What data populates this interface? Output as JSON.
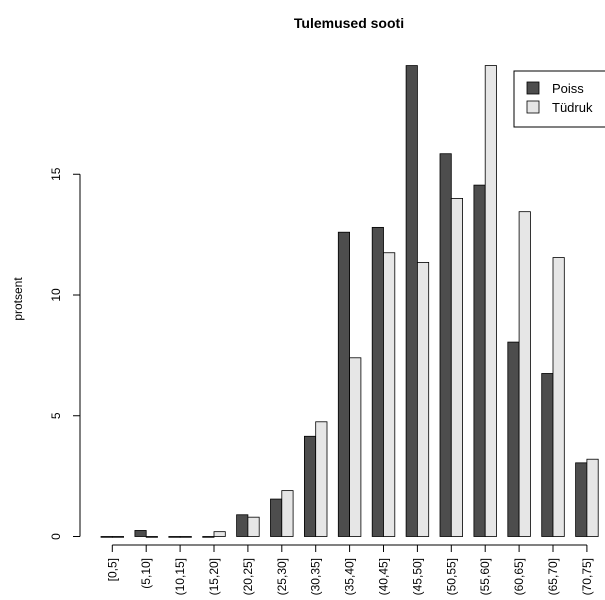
{
  "chart_data": {
    "type": "bar",
    "title": "Tulemused sooti",
    "xlabel": "",
    "ylabel": "protsent",
    "ylim": [
      0,
      19.5
    ],
    "yticks": [
      0,
      5,
      10,
      15
    ],
    "grid": false,
    "legend_position": "top-right",
    "categories": [
      "[0,5]",
      "(5,10]",
      "(10,15]",
      "(15,20]",
      "(20,25]",
      "(25,30]",
      "(30,35]",
      "(35,40]",
      "(40,45]",
      "(45,50]",
      "(50,55]",
      "(55,60]",
      "(60,65]",
      "(65,70]",
      "(70,75]"
    ],
    "series": [
      {
        "name": "Poiss",
        "color": "#4d4d4d",
        "values": [
          0,
          0.25,
          0,
          0,
          0.9,
          1.55,
          4.15,
          12.6,
          12.8,
          19.5,
          15.85,
          14.55,
          8.05,
          6.75,
          3.05
        ]
      },
      {
        "name": "Tüdruk",
        "color": "#e6e6e6",
        "values": [
          0,
          0,
          0,
          0.2,
          0.8,
          1.9,
          4.75,
          7.4,
          11.75,
          11.35,
          14,
          19.5,
          13.45,
          11.55,
          3.2
        ]
      }
    ]
  }
}
